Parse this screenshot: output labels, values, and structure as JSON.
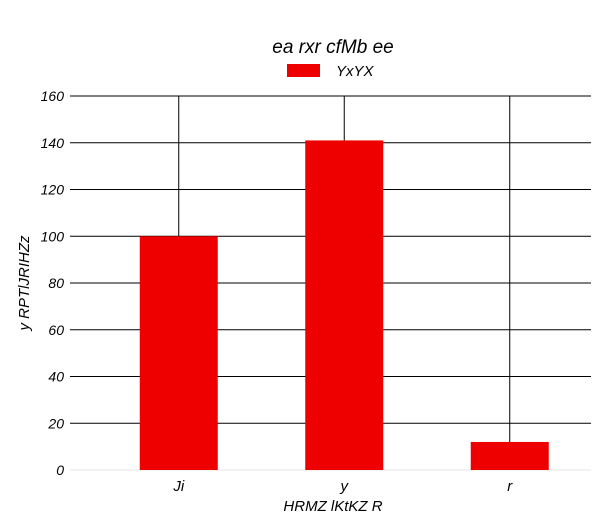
{
  "chart_data": {
    "type": "bar",
    "title": "ea rxr cfMb ee",
    "xlabel": "HRMZ lKtKZ R",
    "ylabel": "y RPTlJRIHZz",
    "categories": [
      "Ji",
      "y",
      "r"
    ],
    "series": [
      {
        "name": "YxYX",
        "values": [
          100,
          141,
          12
        ],
        "color": "#ee0000"
      }
    ],
    "ylim": [
      0,
      160
    ],
    "yticks": [
      0,
      20,
      40,
      60,
      80,
      100,
      120,
      140,
      160
    ],
    "grid": true,
    "legend_position": "top-center"
  }
}
